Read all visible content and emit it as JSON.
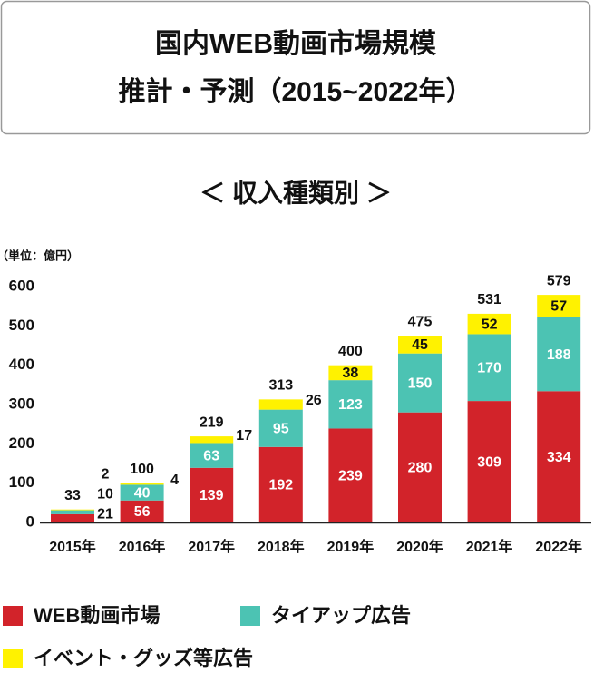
{
  "chart_data": {
    "type": "stacked-bar",
    "title": "国内WEB動画市場規模",
    "subtitle": "推計・予測（2015~2022年）",
    "section_title": "＜ 収入種類別 ＞",
    "unit_label": "（単位：億円）",
    "categories": [
      "2015年",
      "2016年",
      "2017年",
      "2018年",
      "2019年",
      "2020年",
      "2021年",
      "2022年"
    ],
    "series": [
      {
        "name": "WEB動画市場",
        "color": "#d2232a",
        "values": [
          21,
          56,
          139,
          192,
          239,
          280,
          309,
          334
        ]
      },
      {
        "name": "タイアップ広告",
        "color": "#4cc3b3",
        "values": [
          10,
          40,
          63,
          95,
          123,
          150,
          170,
          188
        ]
      },
      {
        "name": "イベント・グッズ等広告",
        "color": "#fff200",
        "values": [
          2,
          4,
          17,
          26,
          38,
          45,
          52,
          57
        ]
      }
    ],
    "totals": [
      33,
      100,
      219,
      313,
      400,
      475,
      531,
      579
    ],
    "ylim": [
      0,
      600
    ],
    "yticks": [
      0,
      100,
      200,
      300,
      400,
      500,
      600
    ],
    "grid": false
  }
}
